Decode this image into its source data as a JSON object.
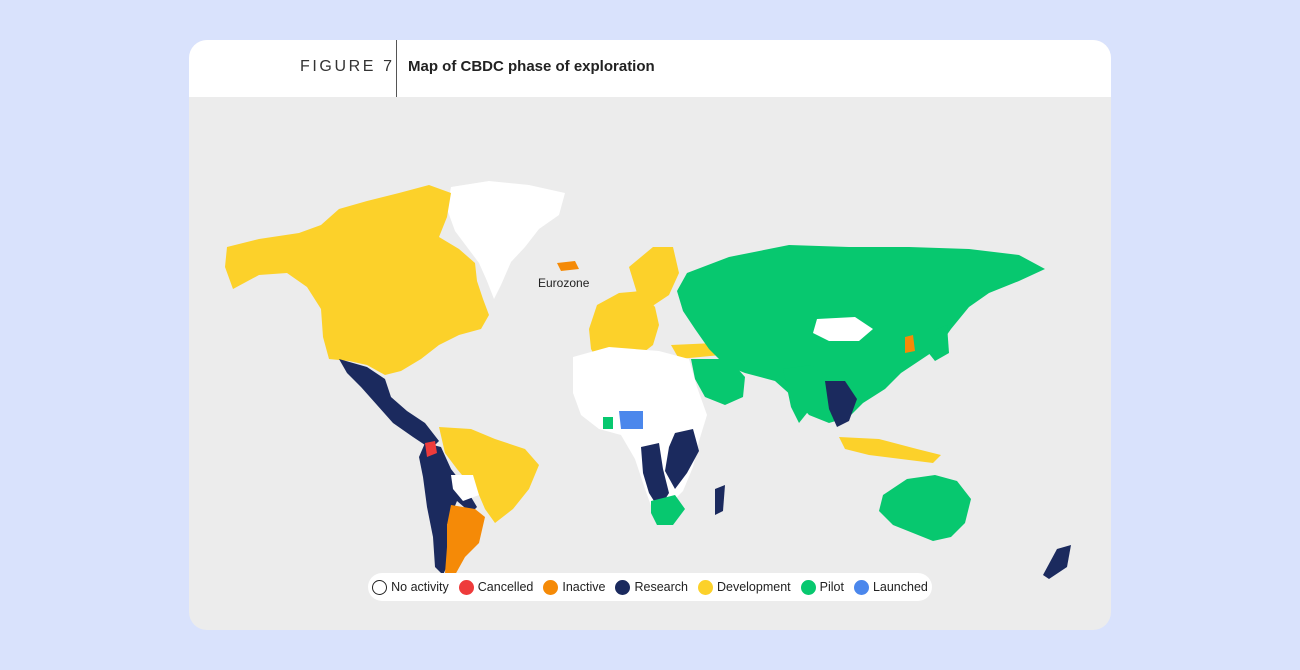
{
  "header": {
    "figure_number": "FIGURE 7",
    "title": "Map of CBDC phase of exploration"
  },
  "map": {
    "annotation": "Eurozone",
    "status_colors": {
      "no_activity": "#ffffff",
      "cancelled": "#ee3b3b",
      "inactive": "#f58a07",
      "research": "#1b2a5e",
      "development": "#fcd12a",
      "pilot": "#07c86f",
      "launched": "#4b87ec"
    }
  },
  "legend": {
    "items": [
      {
        "label": "No activity",
        "color": "#ffffff",
        "outlined": true
      },
      {
        "label": "Cancelled",
        "color": "#ee3b3b"
      },
      {
        "label": "Inactive",
        "color": "#f58a07"
      },
      {
        "label": "Research",
        "color": "#1b2a5e"
      },
      {
        "label": "Development",
        "color": "#fcd12a"
      },
      {
        "label": "Pilot",
        "color": "#07c86f"
      },
      {
        "label": "Launched",
        "color": "#4b87ec"
      }
    ]
  }
}
